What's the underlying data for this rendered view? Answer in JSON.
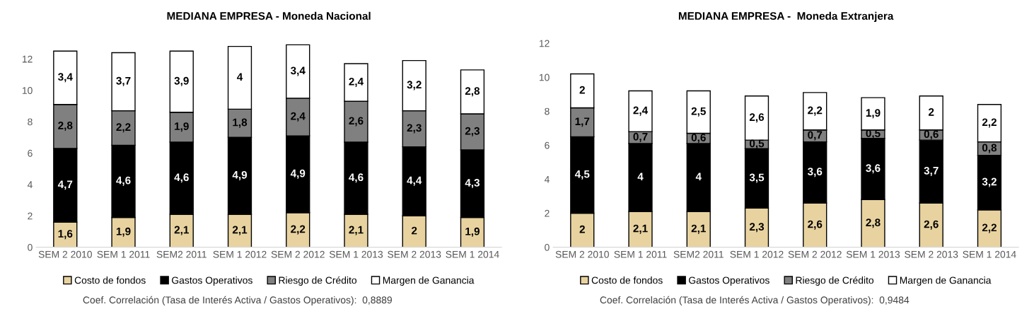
{
  "chart_data": [
    {
      "type": "bar",
      "title": "MEDIANA EMPRESA - Moneda Nacional",
      "stacked": true,
      "legend": "bottom",
      "grid": false,
      "categories": [
        "SEM 2 2010",
        "SEM 1 2011",
        "SEM2 2011",
        "SEM 1 2012",
        "SEM 2 2012",
        "SEM 1 2013",
        "SEM 2 2013",
        "SEM 1 2014"
      ],
      "ylim": [
        0,
        13
      ],
      "yticks": [
        0,
        2,
        4,
        6,
        8,
        10,
        12
      ],
      "series": [
        {
          "name": "Costo de fondos",
          "color": "#e8d3a0",
          "values": [
            1.6,
            1.9,
            2.1,
            2.1,
            2.2,
            2.1,
            2,
            1.9
          ],
          "value_labels": [
            "1,6",
            "1,9",
            "2,1",
            "2,1",
            "2,2",
            "2,1",
            "2",
            "1,9"
          ]
        },
        {
          "name": "Gastos Operativos",
          "color": "#000000",
          "values": [
            4.7,
            4.6,
            4.6,
            4.9,
            4.9,
            4.6,
            4.4,
            4.3
          ],
          "value_labels": [
            "4,7",
            "4,6",
            "4,6",
            "4,9",
            "4,9",
            "4,6",
            "4,4",
            "4,3"
          ]
        },
        {
          "name": "Riesgo de Crédito",
          "color": "#808080",
          "values": [
            2.8,
            2.2,
            1.9,
            1.8,
            2.4,
            2.6,
            2.3,
            2.3
          ],
          "value_labels": [
            "2,8",
            "2,2",
            "1,9",
            "1,8",
            "2,4",
            "2,6",
            "2,3",
            "2,3"
          ]
        },
        {
          "name": "Margen de Ganancia",
          "color": "#ffffff",
          "values": [
            3.4,
            3.7,
            3.9,
            4,
            3.4,
            2.4,
            3.2,
            2.8
          ],
          "value_labels": [
            "3,4",
            "3,7",
            "3,9",
            "4",
            "3,4",
            "2,4",
            "3,2",
            "2,8"
          ]
        }
      ],
      "annotations": [
        "Coef. Correlación (Tasa de Interés Activa / Gastos Operativos):  0,8889"
      ]
    },
    {
      "type": "bar",
      "title": "MEDIANA EMPRESA -  Moneda Extranjera",
      "stacked": true,
      "legend": "bottom",
      "grid": false,
      "categories": [
        "SEM 2 2010",
        "SEM 1 2011",
        "SEM2 2011",
        "SEM 1 2012",
        "SEM 2 2012",
        "SEM 1 2013",
        "SEM 2 2013",
        "SEM 1 2014"
      ],
      "ylim": [
        0,
        12
      ],
      "yticks": [
        0,
        2,
        4,
        6,
        8,
        10,
        12
      ],
      "series": [
        {
          "name": "Costo de fondos",
          "color": "#e8d3a0",
          "values": [
            2,
            2.1,
            2.1,
            2.3,
            2.6,
            2.8,
            2.6,
            2.2
          ],
          "value_labels": [
            "2",
            "2,1",
            "2,1",
            "2,3",
            "2,6",
            "2,8",
            "2,6",
            "2,2"
          ]
        },
        {
          "name": "Gastos Operativos",
          "color": "#000000",
          "values": [
            4.5,
            4,
            4,
            3.5,
            3.6,
            3.6,
            3.7,
            3.2
          ],
          "value_labels": [
            "4,5",
            "4",
            "4",
            "3,5",
            "3,6",
            "3,6",
            "3,7",
            "3,2"
          ]
        },
        {
          "name": "Riesgo de Crédito",
          "color": "#808080",
          "values": [
            1.7,
            0.7,
            0.6,
            0.5,
            0.7,
            0.5,
            0.6,
            0.8
          ],
          "value_labels": [
            "1,7",
            "0,7",
            "0,6",
            "0,5",
            "0,7",
            "0,5",
            "0,6",
            "0,8"
          ]
        },
        {
          "name": "Margen de Ganancia",
          "color": "#ffffff",
          "values": [
            2,
            2.4,
            2.5,
            2.6,
            2.2,
            1.9,
            2,
            2.2
          ],
          "value_labels": [
            "2",
            "2,4",
            "2,5",
            "2,6",
            "2,2",
            "1,9",
            "2",
            "2,2"
          ]
        }
      ],
      "annotations": [
        "Coef. Correlación (Tasa de Interés Activa / Gastos Operativos):  0,9484"
      ]
    }
  ]
}
